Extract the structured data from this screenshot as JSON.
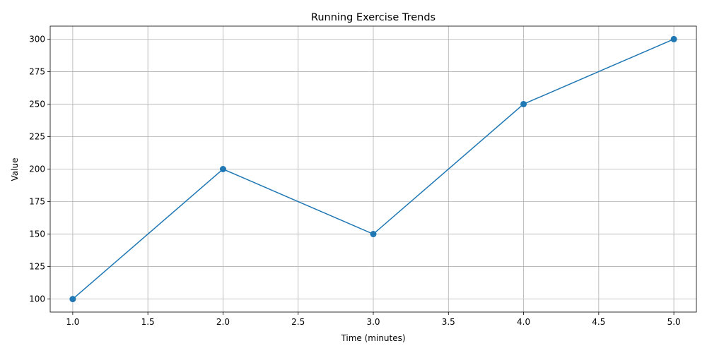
{
  "chart_data": {
    "type": "line",
    "title": "Running Exercise Trends",
    "xlabel": "Time (minutes)",
    "ylabel": "Value",
    "x": [
      1,
      2,
      3,
      4,
      5
    ],
    "series": [
      {
        "values": [
          100,
          200,
          150,
          250,
          300
        ],
        "color": "#1f77b4",
        "marker": "circle"
      }
    ],
    "xlim": [
      0.85,
      5.15
    ],
    "ylim": [
      90,
      310
    ],
    "xticks": [
      1.0,
      1.5,
      2.0,
      2.5,
      3.0,
      3.5,
      4.0,
      4.5,
      5.0
    ],
    "xtick_labels": [
      "1.0",
      "1.5",
      "2.0",
      "2.5",
      "3.0",
      "3.5",
      "4.0",
      "4.5",
      "5.0"
    ],
    "yticks": [
      100,
      125,
      150,
      175,
      200,
      225,
      250,
      275,
      300
    ],
    "ytick_labels": [
      "100",
      "125",
      "150",
      "175",
      "200",
      "225",
      "250",
      "275",
      "300"
    ],
    "grid": true,
    "legend": "none"
  }
}
